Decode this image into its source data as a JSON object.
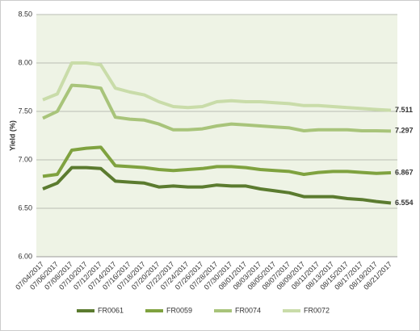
{
  "chart_data": {
    "type": "line",
    "y_label": "Yield (%)",
    "categories": [
      "07/04/2017",
      "07/06/2017",
      "07/08/2017",
      "07/10/2017",
      "07/12/2017",
      "07/14/2017",
      "07/16/2017",
      "07/18/2017",
      "07/20/2017",
      "07/22/2017",
      "07/24/2017",
      "07/26/2017",
      "07/28/2017",
      "07/30/2017",
      "08/01/2017",
      "08/03/2017",
      "08/05/2017",
      "08/07/2017",
      "08/09/2017",
      "08/11/2017",
      "08/13/2017",
      "08/15/2017",
      "08/17/2017",
      "08/19/2017",
      "08/21/2017"
    ],
    "series": [
      {
        "name": "FR0061",
        "color": "#5b7b2f",
        "values": [
          6.7,
          6.76,
          6.92,
          6.92,
          6.91,
          6.78,
          6.77,
          6.76,
          6.72,
          6.73,
          6.72,
          6.72,
          6.74,
          6.73,
          6.73,
          6.7,
          6.68,
          6.66,
          6.62,
          6.62,
          6.62,
          6.6,
          6.59,
          6.57,
          6.554
        ]
      },
      {
        "name": "FR0059",
        "color": "#7fa23f",
        "values": [
          6.83,
          6.85,
          7.1,
          7.12,
          7.13,
          6.94,
          6.93,
          6.92,
          6.9,
          6.89,
          6.9,
          6.91,
          6.93,
          6.93,
          6.92,
          6.9,
          6.89,
          6.88,
          6.85,
          6.87,
          6.88,
          6.88,
          6.87,
          6.86,
          6.867
        ]
      },
      {
        "name": "FR0074",
        "color": "#a8c47a",
        "values": [
          7.43,
          7.5,
          7.77,
          7.76,
          7.74,
          7.44,
          7.42,
          7.41,
          7.37,
          7.31,
          7.31,
          7.32,
          7.35,
          7.37,
          7.36,
          7.35,
          7.34,
          7.33,
          7.3,
          7.31,
          7.31,
          7.31,
          7.3,
          7.3,
          7.297
        ]
      },
      {
        "name": "FR0072",
        "color": "#c9dca9",
        "values": [
          7.62,
          7.68,
          8.0,
          8.0,
          7.98,
          7.74,
          7.7,
          7.67,
          7.6,
          7.55,
          7.54,
          7.55,
          7.6,
          7.61,
          7.6,
          7.6,
          7.59,
          7.58,
          7.56,
          7.56,
          7.55,
          7.54,
          7.53,
          7.52,
          7.511
        ]
      }
    ],
    "ylim": [
      6.0,
      8.5
    ],
    "yticks": [
      {
        "value": 6.0,
        "label": "6.00"
      },
      {
        "value": 6.5,
        "label": "6.50"
      },
      {
        "value": 7.0,
        "label": "7.00"
      },
      {
        "value": 7.5,
        "label": "7.50"
      },
      {
        "value": 8.0,
        "label": "8.00"
      },
      {
        "value": 8.5,
        "label": "8.50"
      }
    ],
    "grid": true,
    "legend": "bottom"
  }
}
